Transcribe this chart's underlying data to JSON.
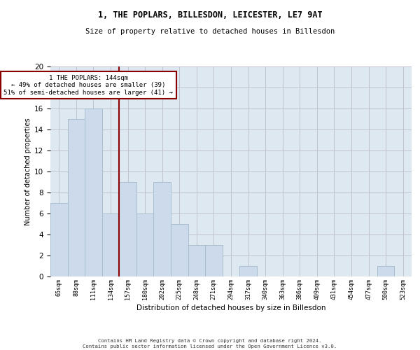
{
  "title1": "1, THE POPLARS, BILLESDON, LEICESTER, LE7 9AT",
  "title2": "Size of property relative to detached houses in Billesdon",
  "xlabel": "Distribution of detached houses by size in Billesdon",
  "ylabel": "Number of detached properties",
  "bar_labels": [
    "65sqm",
    "88sqm",
    "111sqm",
    "134sqm",
    "157sqm",
    "180sqm",
    "202sqm",
    "225sqm",
    "248sqm",
    "271sqm",
    "294sqm",
    "317sqm",
    "340sqm",
    "363sqm",
    "386sqm",
    "409sqm",
    "431sqm",
    "454sqm",
    "477sqm",
    "500sqm",
    "523sqm"
  ],
  "bar_values": [
    7,
    15,
    16,
    6,
    9,
    6,
    9,
    5,
    3,
    3,
    0,
    1,
    0,
    0,
    0,
    0,
    0,
    0,
    0,
    1,
    0
  ],
  "bar_color": "#ccdaeb",
  "bar_edgecolor": "#a8becc",
  "vline_x": 3.5,
  "vline_color": "#8b0000",
  "annotation_text": "1 THE POPLARS: 144sqm\n← 49% of detached houses are smaller (39)\n51% of semi-detached houses are larger (41) →",
  "annotation_box_color": "#8b0000",
  "ylim": [
    0,
    20
  ],
  "yticks": [
    0,
    2,
    4,
    6,
    8,
    10,
    12,
    14,
    16,
    18,
    20
  ],
  "grid_color": "#bbbbcc",
  "bg_color": "#dde8f0",
  "footer1": "Contains HM Land Registry data © Crown copyright and database right 2024.",
  "footer2": "Contains public sector information licensed under the Open Government Licence v3.0."
}
